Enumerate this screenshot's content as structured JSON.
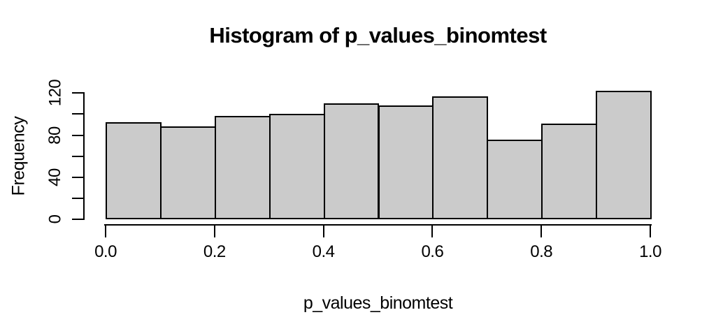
{
  "chart_data": {
    "type": "bar",
    "subtype": "histogram",
    "title": "Histogram of p_values_binomtest",
    "xlabel": "p_values_binomtest",
    "ylabel": "Frequency",
    "categories": [
      "0.0-0.1",
      "0.1-0.2",
      "0.2-0.3",
      "0.3-0.4",
      "0.4-0.5",
      "0.5-0.6",
      "0.6-0.7",
      "0.7-0.8",
      "0.8-0.9",
      "0.9-1.0"
    ],
    "bin_edges": [
      0.0,
      0.1,
      0.2,
      0.3,
      0.4,
      0.5,
      0.6,
      0.7,
      0.8,
      0.9,
      1.0
    ],
    "values": [
      92,
      88,
      98,
      100,
      110,
      108,
      117,
      76,
      91,
      122
    ],
    "xlim": [
      0,
      1
    ],
    "ylim": [
      0,
      124.8
    ],
    "x_ticks": [
      {
        "value": 0.0,
        "label": "0.0"
      },
      {
        "value": 0.2,
        "label": "0.2"
      },
      {
        "value": 0.4,
        "label": "0.4"
      },
      {
        "value": 0.6,
        "label": "0.6"
      },
      {
        "value": 0.8,
        "label": "0.8"
      },
      {
        "value": 1.0,
        "label": "1.0"
      }
    ],
    "y_ticks": [
      0,
      20,
      40,
      60,
      80,
      100,
      120
    ],
    "y_labeled_ticks": [
      {
        "value": 0,
        "label": "0"
      },
      {
        "value": 40,
        "label": "40"
      },
      {
        "value": 80,
        "label": "80"
      },
      {
        "value": 120,
        "label": "120"
      }
    ],
    "grid": false,
    "legend": false,
    "bar_fill_color": "#cbcbcb",
    "bar_border_color": "#000000",
    "axis_color": "#000000",
    "background_color": "#ffffff",
    "text_color": "#000000"
  }
}
